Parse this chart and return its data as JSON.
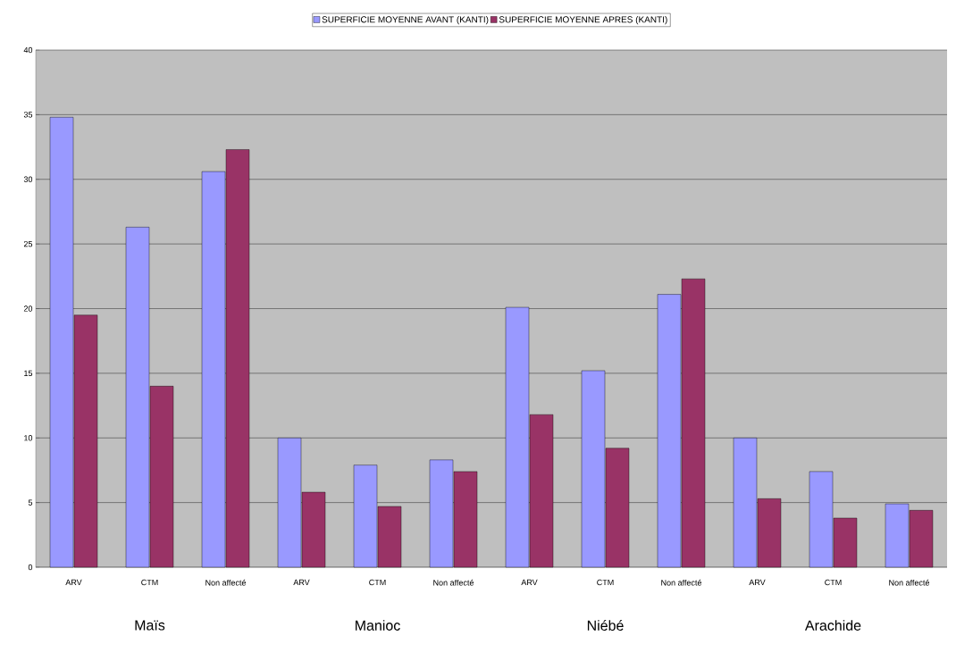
{
  "chart_data": {
    "type": "bar",
    "categories": [
      "ARV",
      "CTM",
      "Non affecté",
      "ARV",
      "CTM",
      "Non affecté",
      "ARV",
      "CTM",
      "Non affecté",
      "ARV",
      "CTM",
      "Non affecté"
    ],
    "series": [
      {
        "name": "SUPERFICIE MOYENNE AVANT (KANTI)",
        "color": "#9999ff",
        "values": [
          34.8,
          26.3,
          30.6,
          10.0,
          7.9,
          8.3,
          20.1,
          15.2,
          21.1,
          10.0,
          7.4,
          4.9
        ]
      },
      {
        "name": "SUPERFICIE MOYENNE APRES (KANTI)",
        "color": "#993366",
        "values": [
          19.5,
          14.0,
          32.3,
          5.8,
          4.7,
          7.4,
          11.8,
          9.2,
          22.3,
          5.3,
          3.8,
          4.4
        ]
      }
    ],
    "annotations": [
      "Maïs",
      "Manioc",
      "Niébé",
      "Arachide"
    ],
    "ylim": [
      0,
      40
    ],
    "yticks": [
      0,
      5,
      10,
      15,
      20,
      25,
      30,
      35,
      40
    ],
    "grid": "y",
    "legend": "top"
  }
}
